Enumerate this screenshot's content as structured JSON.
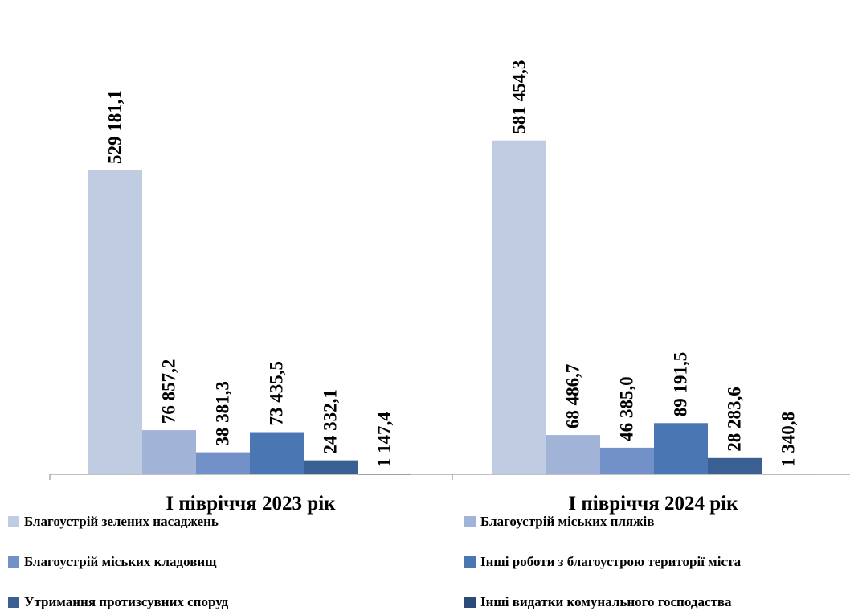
{
  "chart_data": {
    "type": "bar",
    "categories": [
      "І півріччя 2023 рік",
      "І півріччя 2024 рік"
    ],
    "series": [
      {
        "name": "Благоустрій зелених насаджень",
        "values": [
          "529 181,1",
          "581 454,3"
        ],
        "numeric": [
          529181.1,
          581454.3
        ],
        "color": "#c0cce2"
      },
      {
        "name": "Благоустрій міських пляжів",
        "values": [
          "76 857,2",
          "68 486,7"
        ],
        "numeric": [
          76857.2,
          68486.7
        ],
        "color": "#a1b3d6"
      },
      {
        "name": "Благоустрій міських кладовищ",
        "values": [
          "38 381,3",
          "46 385,0"
        ],
        "numeric": [
          38381.3,
          46385.0
        ],
        "color": "#7391c9"
      },
      {
        "name": "Інші роботи з благоустрою території міста",
        "values": [
          "73 435,5",
          "89 191,5"
        ],
        "numeric": [
          73435.5,
          89191.5
        ],
        "color": "#4a76b4"
      },
      {
        "name": "Утримання протизсувних споруд",
        "values": [
          "24 332,1",
          "28 283,6"
        ],
        "numeric": [
          24332.1,
          28283.6
        ],
        "color": "#3a5f93"
      },
      {
        "name": "Інші видатки комунального господаства",
        "values": [
          "1 147,4",
          "1 340,8"
        ],
        "numeric": [
          1147.4,
          1340.8
        ],
        "color": "#2b4a77"
      }
    ],
    "ylim": [
      0,
      700000
    ],
    "grid": false,
    "legend_position": "bottom"
  }
}
